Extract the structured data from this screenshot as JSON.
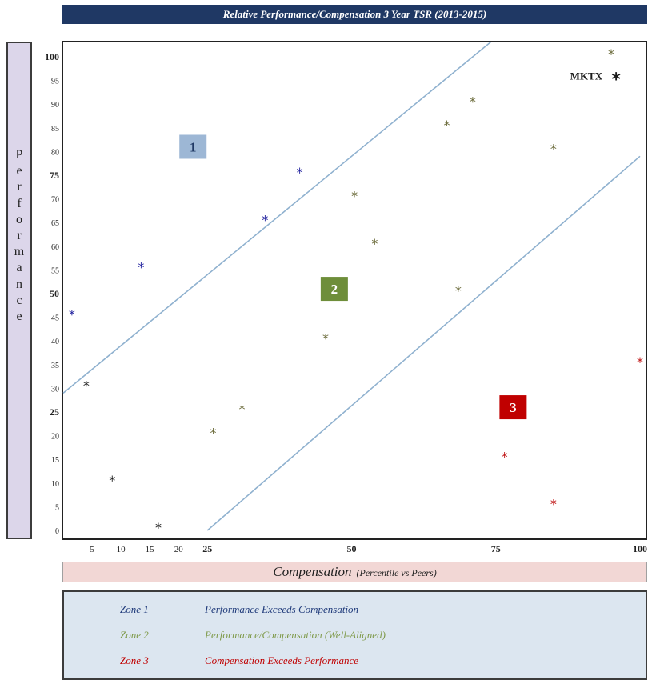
{
  "chart_data": {
    "type": "scatter",
    "title": "Relative Performance/Compensation 3 Year TSR (2013-2015)",
    "ylabel": "Performance",
    "xlabel": "Compensation",
    "xlabel_sub": "(Percentile vs Peers)",
    "xlim": [
      0,
      100
    ],
    "ylim": [
      0,
      100
    ],
    "x_ticks": [
      5,
      10,
      15,
      20,
      25,
      50,
      75,
      100
    ],
    "y_ticks": [
      0,
      5,
      10,
      15,
      20,
      25,
      30,
      35,
      40,
      45,
      50,
      55,
      60,
      65,
      70,
      75,
      80,
      85,
      90,
      95,
      100
    ],
    "y_ticks_bold": [
      25,
      50,
      75,
      100
    ],
    "zone_lines": [
      {
        "x1": 0,
        "y1": 29,
        "x2": 75,
        "y2": 104
      },
      {
        "x1": 25,
        "y1": 0,
        "x2": 100,
        "y2": 79
      }
    ],
    "zone_markers": [
      {
        "label": "1",
        "x": 22.5,
        "y": 81,
        "color": "#9db7d5",
        "text_color": "#1f3864"
      },
      {
        "label": "2",
        "x": 47,
        "y": 51,
        "color": "#6e8e3a",
        "text_color": "#ffffff"
      },
      {
        "label": "3",
        "x": 78,
        "y": 26,
        "color": "#c00000",
        "text_color": "#ffffff"
      }
    ],
    "series": [
      {
        "color": "#1c1c9c",
        "points": [
          [
            1.5,
            46
          ],
          [
            13.5,
            56
          ],
          [
            35,
            66
          ],
          [
            41,
            76
          ]
        ]
      },
      {
        "color": "#6b6b3a",
        "points": [
          [
            26,
            21
          ],
          [
            31,
            26
          ],
          [
            45.5,
            41
          ],
          [
            50.5,
            71
          ],
          [
            54,
            61
          ],
          [
            66.5,
            86
          ],
          [
            68.5,
            51
          ],
          [
            71,
            91
          ],
          [
            85,
            81
          ],
          [
            95,
            101
          ]
        ]
      },
      {
        "color": "#c01818",
        "points": [
          [
            76.5,
            16
          ],
          [
            85,
            6
          ],
          [
            100,
            36
          ]
        ]
      },
      {
        "color": "#1a1a1a",
        "points": [
          [
            4,
            31
          ],
          [
            8.5,
            11
          ],
          [
            16.5,
            1
          ]
        ]
      }
    ],
    "annotations": [
      {
        "text": "MKTX",
        "x": 93.5,
        "y": 96
      }
    ]
  },
  "legend": [
    {
      "zone": "Zone 1",
      "desc": "Performance Exceeds Compensation",
      "color": "#1f3a7a"
    },
    {
      "zone": "Zone 2",
      "desc": "Performance/Compensation (Well-Aligned)",
      "color": "#7f9a4a"
    },
    {
      "zone": "Zone 3",
      "desc": "Compensation Exceeds Performance",
      "color": "#c00000"
    }
  ]
}
